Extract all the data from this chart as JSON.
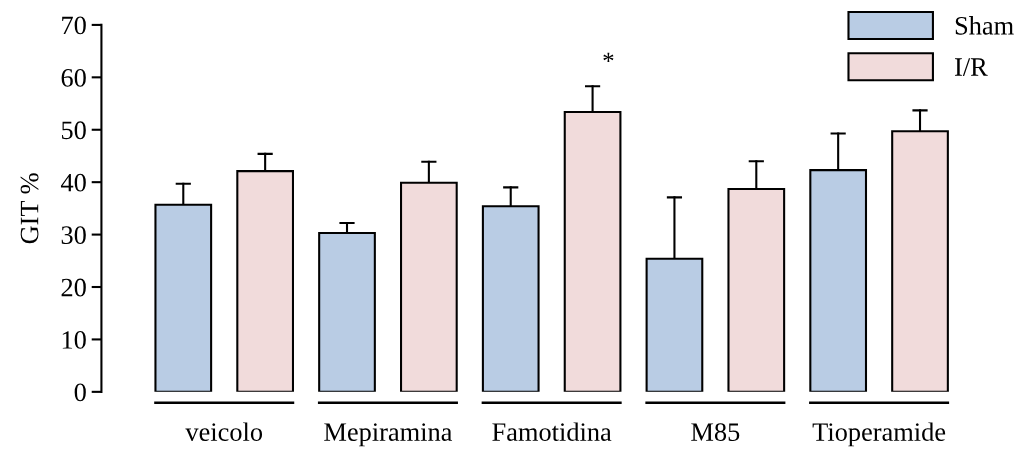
{
  "chart_data": {
    "type": "bar",
    "ylabel": "GIT %",
    "categories": [
      "veicolo",
      "Mepiramina",
      "Famotidina",
      "M85",
      "Tioperamide"
    ],
    "series": [
      {
        "name": "Sham",
        "color": "#b9cce4",
        "values": [
          35.7,
          30.3,
          35.4,
          25.4,
          42.3
        ],
        "errors": [
          [
            35.7,
            39.7
          ],
          [
            30.3,
            32.2
          ],
          [
            35.4,
            39.0
          ],
          [
            25.4,
            37.1
          ],
          [
            42.3,
            49.3
          ]
        ]
      },
      {
        "name": "I/R",
        "color": "#f1dbdb",
        "values": [
          42.1,
          39.9,
          53.4,
          38.7,
          49.7
        ],
        "errors": [
          [
            42.1,
            45.4
          ],
          [
            39.9,
            43.9
          ],
          [
            53.4,
            58.3
          ],
          [
            38.7,
            44.0
          ],
          [
            49.7,
            53.7
          ]
        ]
      }
    ],
    "ylim": [
      0,
      70
    ],
    "yticks": [
      0,
      10,
      20,
      30,
      40,
      50,
      60,
      70
    ],
    "annotations": [
      "*"
    ],
    "legend": "top right",
    "grid": false
  }
}
